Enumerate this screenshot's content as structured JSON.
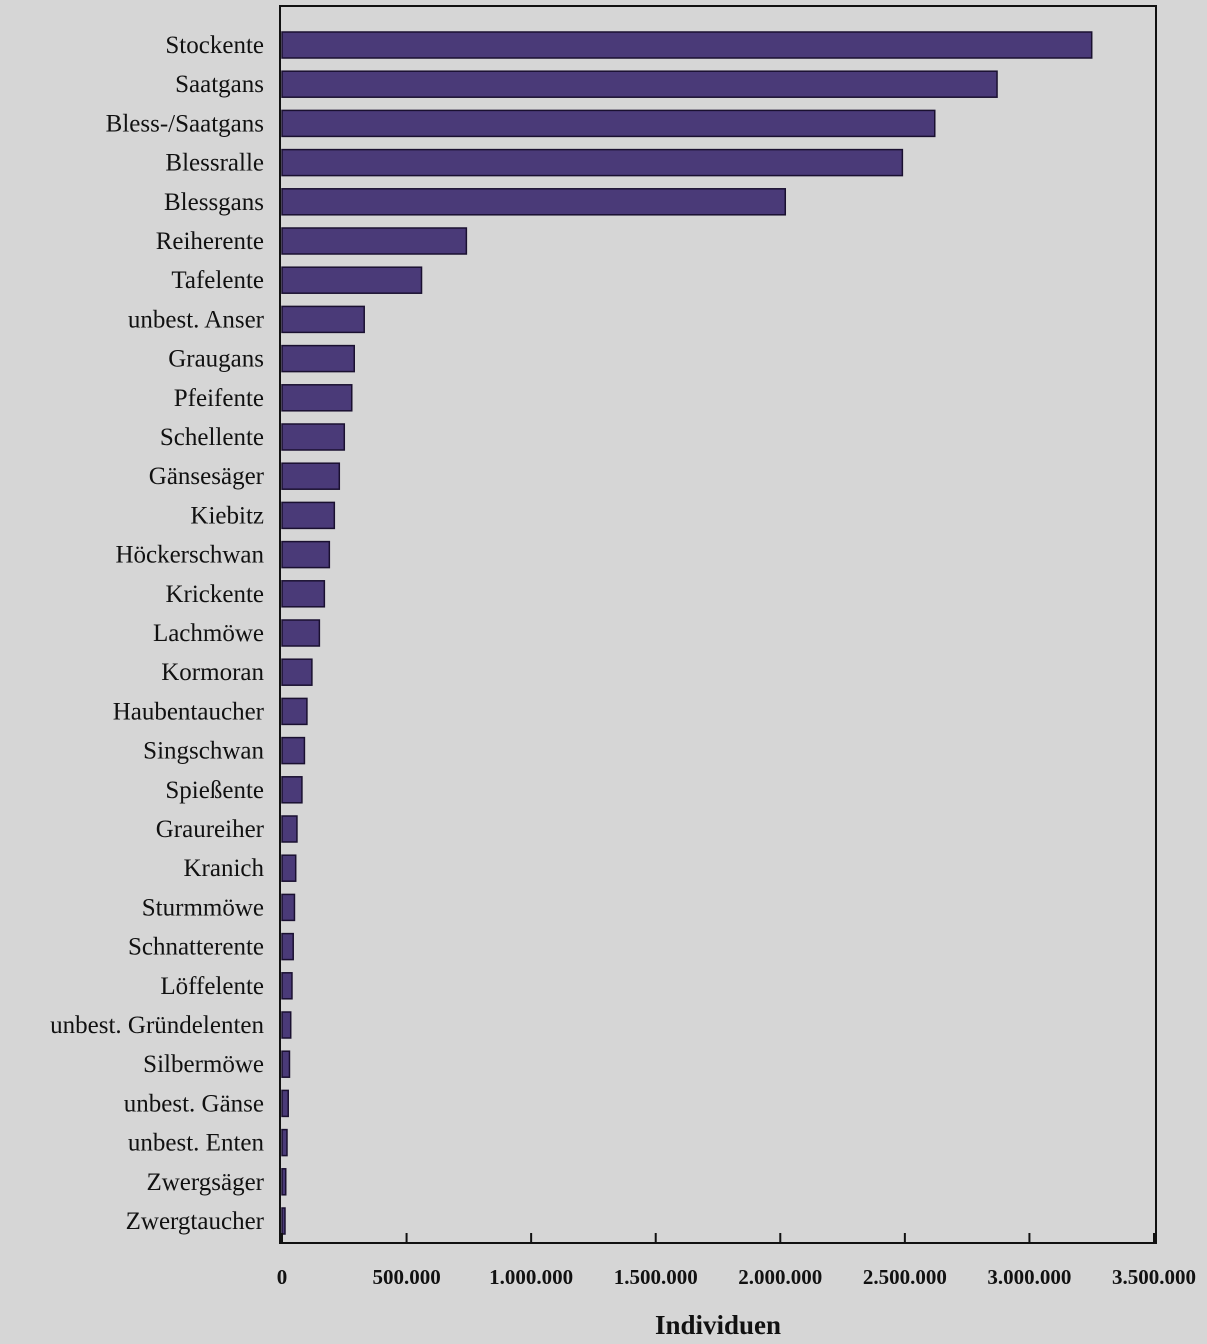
{
  "chart_data": {
    "type": "bar",
    "orientation": "horizontal",
    "title": "",
    "xlabel": "Individuen",
    "ylabel": "",
    "xlim": [
      0,
      3500000
    ],
    "x_ticks": [
      0,
      500000,
      1000000,
      1500000,
      2000000,
      2500000,
      3000000,
      3500000
    ],
    "x_tick_labels": [
      "0",
      "500.000",
      "1.000.000",
      "1.500.000",
      "2.000.000",
      "2.500.000",
      "3.000.000",
      "3.500.000"
    ],
    "grid": false,
    "legend": "none",
    "bar_color": "#4a3a78",
    "categories": [
      "Stockente",
      "Saatgans",
      "Bless-/Saatgans",
      "Blessralle",
      "Blessgans",
      "Reiherente",
      "Tafelente",
      "unbest. Anser",
      "Graugans",
      "Pfeifente",
      "Schellente",
      "Gänsesäger",
      "Kiebitz",
      "Höckerschwan",
      "Krickente",
      "Lachmöwe",
      "Kormoran",
      "Haubentaucher",
      "Singschwan",
      "Spießente",
      "Graureiher",
      "Kranich",
      "Sturmmöwe",
      "Schnatterente",
      "Löffelente",
      "unbest. Gründelenten",
      "Silbermöwe",
      "unbest. Gänse",
      "unbest. Enten",
      "Zwergsäger",
      "Zwergtaucher"
    ],
    "values": [
      3250000,
      2870000,
      2620000,
      2490000,
      2020000,
      740000,
      560000,
      330000,
      290000,
      280000,
      250000,
      230000,
      210000,
      190000,
      170000,
      150000,
      120000,
      100000,
      90000,
      80000,
      60000,
      55000,
      50000,
      45000,
      40000,
      35000,
      30000,
      25000,
      20000,
      15000,
      12000
    ]
  }
}
